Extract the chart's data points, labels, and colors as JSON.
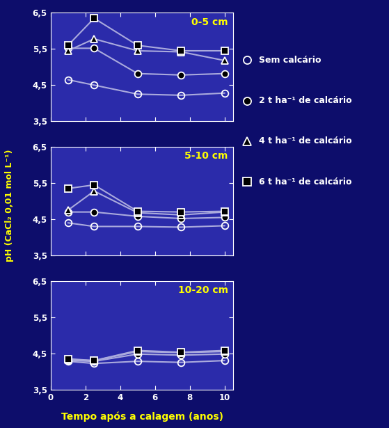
{
  "background_color": "#0d0d6b",
  "plot_bg_color": "#2b2baa",
  "text_color": "white",
  "yellow_color": "#ffff00",
  "line_color": "#aaaadd",
  "x_values": [
    1,
    2.5,
    5,
    7.5,
    10
  ],
  "subplots": [
    {
      "label": "0-5 cm",
      "series": [
        {
          "values": [
            4.65,
            4.5,
            4.25,
            4.22,
            4.28
          ],
          "marker": "o",
          "mfc": "none"
        },
        {
          "values": [
            5.52,
            5.52,
            4.82,
            4.78,
            4.82
          ],
          "marker": "o",
          "mfc": "black"
        },
        {
          "values": [
            5.45,
            5.78,
            5.45,
            5.42,
            5.18
          ],
          "marker": "^",
          "mfc": "black"
        },
        {
          "values": [
            5.6,
            6.35,
            5.6,
            5.45,
            5.45
          ],
          "marker": "s",
          "mfc": "black"
        }
      ]
    },
    {
      "label": "5-10 cm",
      "series": [
        {
          "values": [
            4.4,
            4.3,
            4.3,
            4.28,
            4.32
          ],
          "marker": "o",
          "mfc": "none"
        },
        {
          "values": [
            4.7,
            4.7,
            4.58,
            4.52,
            4.55
          ],
          "marker": "o",
          "mfc": "black"
        },
        {
          "values": [
            4.75,
            5.28,
            4.68,
            4.62,
            4.7
          ],
          "marker": "^",
          "mfc": "black"
        },
        {
          "values": [
            5.35,
            5.45,
            4.72,
            4.7,
            4.72
          ],
          "marker": "s",
          "mfc": "black"
        }
      ]
    },
    {
      "label": "10-20 cm",
      "series": [
        {
          "values": [
            4.28,
            4.22,
            4.28,
            4.25,
            4.3
          ],
          "marker": "o",
          "mfc": "none"
        },
        {
          "values": [
            4.3,
            4.28,
            4.48,
            4.45,
            4.48
          ],
          "marker": "o",
          "mfc": "black"
        },
        {
          "values": [
            4.33,
            4.3,
            4.55,
            4.52,
            4.55
          ],
          "marker": "^",
          "mfc": "black"
        },
        {
          "values": [
            4.35,
            4.3,
            4.58,
            4.53,
            4.58
          ],
          "marker": "s",
          "mfc": "black"
        }
      ]
    }
  ],
  "ylim": [
    3.5,
    6.5
  ],
  "yticks": [
    3.5,
    4.5,
    5.5,
    6.5
  ],
  "ytick_labels": [
    "3,5",
    "4,5",
    "5,5",
    "6,5"
  ],
  "xticks": [
    0,
    2,
    4,
    6,
    8,
    10
  ],
  "xlabel": "Tempo após a calagem (anos)",
  "ylabel": "pH (CaCl₂ 0,01 mol L⁻¹)",
  "legend_entries": [
    {
      "name": "Sem calcário",
      "marker": "o",
      "mfc": "none"
    },
    {
      "name": "2 t ha⁻¹ de calcário",
      "marker": "o",
      "mfc": "black"
    },
    {
      "name": "4 t ha⁻¹ de calcário",
      "marker": "^",
      "mfc": "black"
    },
    {
      "name": "6 t ha⁻¹ de calcário",
      "marker": "s",
      "mfc": "black"
    }
  ]
}
